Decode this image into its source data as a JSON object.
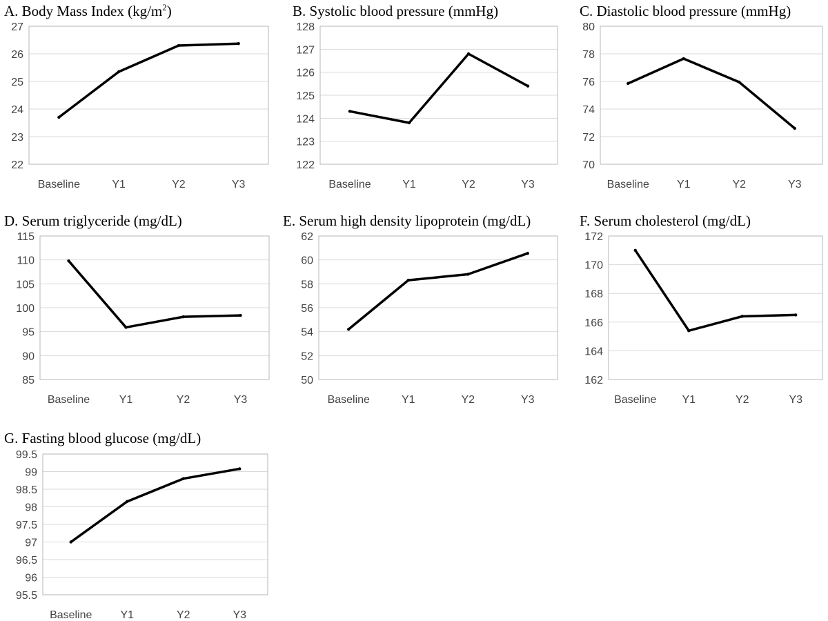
{
  "chart_data": [
    {
      "type": "line",
      "panel": "A",
      "title": "A. Body Mass Index (kg/m",
      "title_sup": "2",
      "title_suffix": ")",
      "categories": [
        "Baseline",
        "Y1",
        "Y2",
        "Y3"
      ],
      "values": [
        23.7,
        25.35,
        26.3,
        26.37
      ],
      "ylim": [
        22,
        27
      ],
      "yticks": [
        "22",
        "23",
        "24",
        "25",
        "26",
        "27"
      ],
      "xlabel": "",
      "ylabel": "",
      "grid": true,
      "series_color": "#000000"
    },
    {
      "type": "line",
      "panel": "B",
      "title": "B. Systolic blood pressure (mmHg)",
      "title_sup": "",
      "title_suffix": "",
      "categories": [
        "Baseline",
        "Y1",
        "Y2",
        "Y3"
      ],
      "values": [
        124.3,
        123.8,
        126.8,
        125.4
      ],
      "ylim": [
        122,
        128
      ],
      "yticks": [
        "122",
        "123",
        "124",
        "125",
        "126",
        "127",
        "128"
      ],
      "xlabel": "",
      "ylabel": "",
      "grid": true,
      "series_color": "#000000"
    },
    {
      "type": "line",
      "panel": "C",
      "title": "C. Diastolic blood pressure (mmHg)",
      "title_sup": "",
      "title_suffix": "",
      "categories": [
        "Baseline",
        "Y1",
        "Y2",
        "Y3"
      ],
      "values": [
        75.85,
        77.65,
        75.95,
        72.6
      ],
      "ylim": [
        70,
        80
      ],
      "yticks": [
        "70",
        "72",
        "74",
        "76",
        "78",
        "80"
      ],
      "xlabel": "",
      "ylabel": "",
      "grid": true,
      "series_color": "#000000"
    },
    {
      "type": "line",
      "panel": "D",
      "title": "D. Serum triglyceride (mg/dL)",
      "title_sup": "",
      "title_suffix": "",
      "categories": [
        "Baseline",
        "Y1",
        "Y2",
        "Y3"
      ],
      "values": [
        109.8,
        95.9,
        98.1,
        98.4
      ],
      "ylim": [
        85,
        115
      ],
      "yticks": [
        "85",
        "90",
        "95",
        "100",
        "105",
        "110",
        "115"
      ],
      "xlabel": "",
      "ylabel": "",
      "grid": true,
      "series_color": "#000000"
    },
    {
      "type": "line",
      "panel": "E",
      "title": "E. Serum high density lipoprotein (mg/dL)",
      "title_sup": "",
      "title_suffix": "",
      "categories": [
        "Baseline",
        "Y1",
        "Y2",
        "Y3"
      ],
      "values": [
        54.2,
        58.3,
        58.8,
        60.55
      ],
      "ylim": [
        50,
        62
      ],
      "yticks": [
        "50",
        "52",
        "54",
        "56",
        "58",
        "60",
        "62"
      ],
      "xlabel": "",
      "ylabel": "",
      "grid": true,
      "series_color": "#000000"
    },
    {
      "type": "line",
      "panel": "F",
      "title": "F. Serum cholesterol (mg/dL)",
      "title_sup": "",
      "title_suffix": "",
      "categories": [
        "Baseline",
        "Y1",
        "Y2",
        "Y3"
      ],
      "values": [
        171.0,
        165.4,
        166.4,
        166.5
      ],
      "ylim": [
        162,
        172
      ],
      "yticks": [
        "162",
        "164",
        "166",
        "168",
        "170",
        "172"
      ],
      "xlabel": "",
      "ylabel": "",
      "grid": true,
      "series_color": "#000000"
    },
    {
      "type": "line",
      "panel": "G",
      "title": "G. Fasting blood glucose (mg/dL)",
      "title_sup": "",
      "title_suffix": "",
      "categories": [
        "Baseline",
        "Y1",
        "Y2",
        "Y3"
      ],
      "values": [
        97.0,
        98.15,
        98.8,
        99.08
      ],
      "ylim": [
        95.5,
        99.5
      ],
      "yticks": [
        "95.5",
        "96",
        "96.5",
        "97",
        "97.5",
        "98",
        "98.5",
        "99",
        "99.5"
      ],
      "xlabel": "",
      "ylabel": "",
      "grid": true,
      "series_color": "#000000"
    }
  ]
}
